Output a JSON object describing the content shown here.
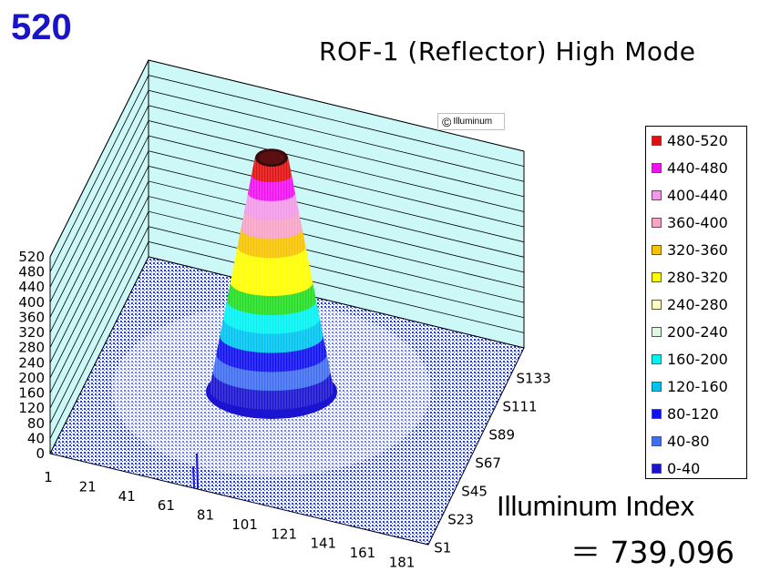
{
  "peak_label": "520",
  "watermark": {
    "symbol": "©",
    "text": "Illuminum"
  },
  "index": {
    "label": "Illuminum Index",
    "value": "＝ 739,096"
  },
  "colors": {
    "wall": "#cdf8f8",
    "floor_pattern": "#2b40c8",
    "grid_line": "#000000"
  },
  "chart_data": {
    "type": "surface3d",
    "title": "ROF-1 (Reflector) High Mode",
    "zlim": [
      0,
      520
    ],
    "z_ticks": [
      "0",
      "40",
      "80",
      "120",
      "160",
      "200",
      "240",
      "280",
      "320",
      "360",
      "400",
      "440",
      "480",
      "520"
    ],
    "x_ticks": [
      "1",
      "21",
      "41",
      "61",
      "81",
      "101",
      "121",
      "141",
      "161",
      "181"
    ],
    "y_ticks": [
      "S1",
      "S23",
      "S45",
      "S67",
      "S89",
      "S111",
      "S133"
    ],
    "peak": 520,
    "grid": true,
    "legend_position": "right",
    "legend": [
      {
        "label": "480-520",
        "color": "#e01010"
      },
      {
        "label": "440-480",
        "color": "#f010f0"
      },
      {
        "label": "400-440",
        "color": "#f29ae8"
      },
      {
        "label": "360-400",
        "color": "#f6a3c6"
      },
      {
        "label": "320-360",
        "color": "#f6c400"
      },
      {
        "label": "280-320",
        "color": "#ffff00"
      },
      {
        "label": "240-280",
        "color": "#ffffc0"
      },
      {
        "label": "200-240",
        "color": "#ddf8dd"
      },
      {
        "label": "160-200",
        "color": "#00f2f2"
      },
      {
        "label": "120-160",
        "color": "#00c4f0"
      },
      {
        "label": "80-120",
        "color": "#1010f0"
      },
      {
        "label": "40-80",
        "color": "#3f6ef0"
      },
      {
        "label": "0-40",
        "color": "#1a14d0"
      }
    ],
    "profile": [
      {
        "value": 40,
        "color": "#1a14d0"
      },
      {
        "value": 80,
        "color": "#3f6ef0"
      },
      {
        "value": 120,
        "color": "#1010f0"
      },
      {
        "value": 160,
        "color": "#00c4f0"
      },
      {
        "value": 200,
        "color": "#00f2f2"
      },
      {
        "value": 240,
        "color": "#22dd22"
      },
      {
        "value": 280,
        "color": "#ffff00"
      },
      {
        "value": 320,
        "color": "#ffff00"
      },
      {
        "value": 360,
        "color": "#f6c400"
      },
      {
        "value": 400,
        "color": "#f6a3c6"
      },
      {
        "value": 440,
        "color": "#f29ae8"
      },
      {
        "value": 480,
        "color": "#f010f0"
      },
      {
        "value": 520,
        "color": "#e01010"
      }
    ]
  }
}
